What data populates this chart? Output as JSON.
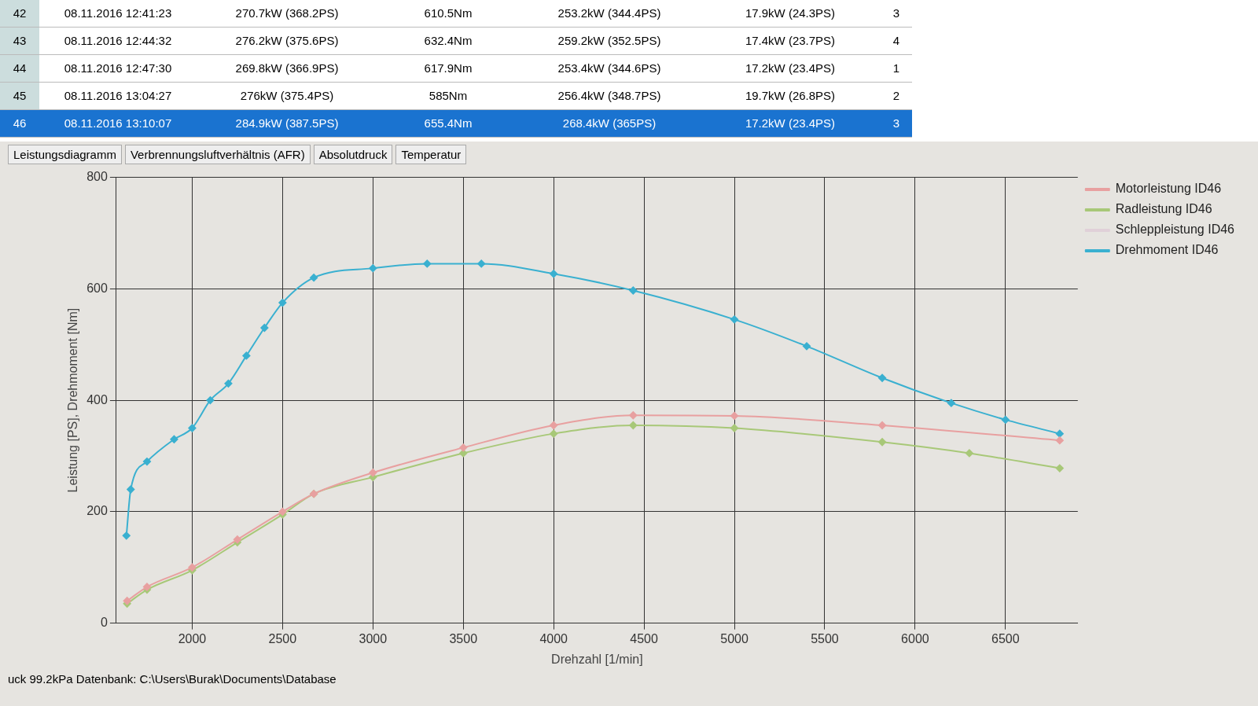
{
  "chart_data": {
    "type": "line",
    "xlabel": "Drehzahl [1/min]",
    "ylabel": "Leistung [PS], Drehmoment [Nm]",
    "xlim": [
      1580,
      6900
    ],
    "xticks": [
      2000,
      2500,
      3000,
      3500,
      4000,
      4500,
      5000,
      5500,
      6000,
      6500
    ],
    "ylim": [
      0,
      800
    ],
    "yticks": [
      0,
      200,
      400,
      600,
      800
    ],
    "grid": true,
    "legend": "right",
    "marker": "diamond",
    "line_style": "solid",
    "series": [
      {
        "name": "Motorleistung ID46",
        "color": "#e8a0a0",
        "x": [
          1640,
          1750,
          2000,
          2250,
          2500,
          2673,
          3000,
          3500,
          4000,
          4440,
          5000,
          5818,
          6800
        ],
        "values": [
          40,
          65,
          100,
          150,
          200,
          232,
          270,
          315,
          355,
          373,
          372,
          355,
          328
        ]
      },
      {
        "name": "Radleistung ID46",
        "color": "#a8c878",
        "x": [
          1640,
          1750,
          2000,
          2250,
          2500,
          2673,
          3000,
          3500,
          4000,
          4440,
          5000,
          5818,
          6300,
          6800
        ],
        "values": [
          35,
          60,
          95,
          145,
          195,
          232,
          262,
          305,
          340,
          355,
          350,
          325,
          305,
          278
        ]
      },
      {
        "name": "Schleppleistung ID46",
        "color": "#e0d0d8"
      },
      {
        "name": "Drehmoment ID46",
        "color": "#3ab0d0",
        "x": [
          1636,
          1660,
          1750,
          1900,
          2000,
          2100,
          2200,
          2300,
          2400,
          2500,
          2673,
          3000,
          3300,
          3600,
          4000,
          4440,
          5000,
          5400,
          5818,
          6200,
          6500,
          6800
        ],
        "values": [
          157,
          240,
          290,
          330,
          350,
          400,
          430,
          480,
          530,
          575,
          620,
          637,
          645,
          645,
          627,
          597,
          545,
          497,
          440,
          395,
          365,
          340
        ]
      }
    ],
    "annotations": [
      "42",
      "08.11.2016 12:41:23",
      "270.7kW (368.2PS)",
      "610.5Nm",
      "253.2kW (344.4PS)",
      "17.9kW (24.3PS)",
      "3",
      "43",
      "08.11.2016 12:44:32",
      "276.2kW (375.6PS)",
      "632.4Nm",
      "259.2kW (352.5PS)",
      "17.4kW (23.7PS)",
      "4",
      "44",
      "08.11.2016 12:47:30",
      "269.8kW (366.9PS)",
      "617.9Nm",
      "253.4kW (344.6PS)",
      "17.2kW (23.4PS)",
      "1",
      "45",
      "08.11.2016 13:04:27",
      "276kW (375.4PS)",
      "585Nm",
      "256.4kW (348.7PS)",
      "19.7kW (26.8PS)",
      "2",
      "46",
      "08.11.2016 13:10:07",
      "284.9kW (387.5PS)",
      "655.4Nm",
      "268.4kW (365PS)",
      "17.2kW (23.4PS)",
      "3",
      "Leistungsdiagramm",
      "Verbrennungsluftverhältnis (AFR)",
      "Absolutdruck",
      "Temperatur",
      "uck 99.2kPa  Datenbank: C:\\Users\\Burak\\Documents\\Database"
    ]
  }
}
